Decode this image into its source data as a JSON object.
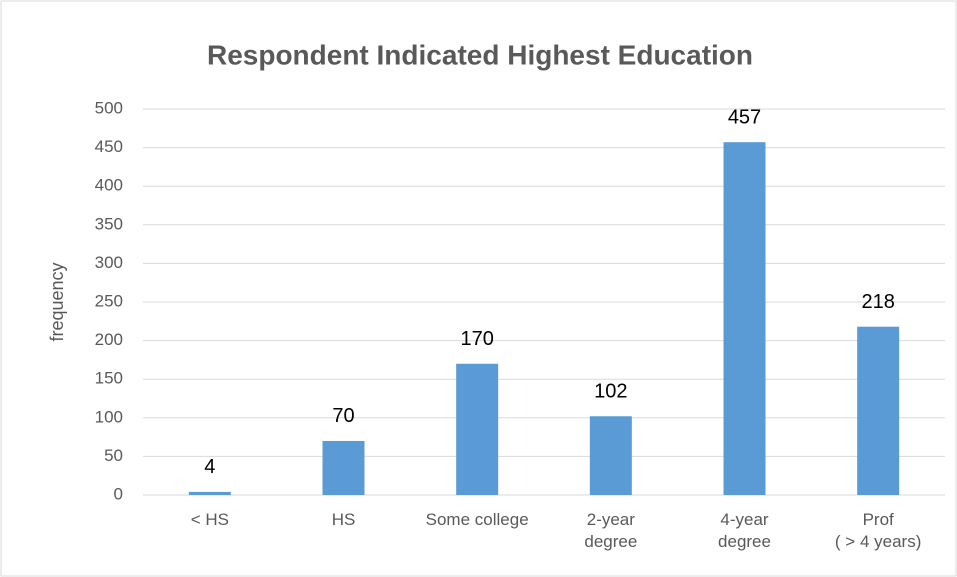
{
  "chart_data": {
    "type": "bar",
    "title": "Respondent Indicated Highest Education",
    "y_label": "frequency",
    "categories": [
      "< HS",
      "HS",
      "Some college",
      "2-year\ndegree",
      "4-year\ndegree",
      "Prof\n( > 4 years)"
    ],
    "values": [
      4,
      70,
      170,
      102,
      457,
      218
    ],
    "color": "#5b9bd5",
    "ylim": [
      0,
      500
    ],
    "yticks": [
      0,
      50,
      100,
      150,
      200,
      250,
      300,
      350,
      400,
      450,
      500
    ],
    "grid": true,
    "data_labels": true
  }
}
